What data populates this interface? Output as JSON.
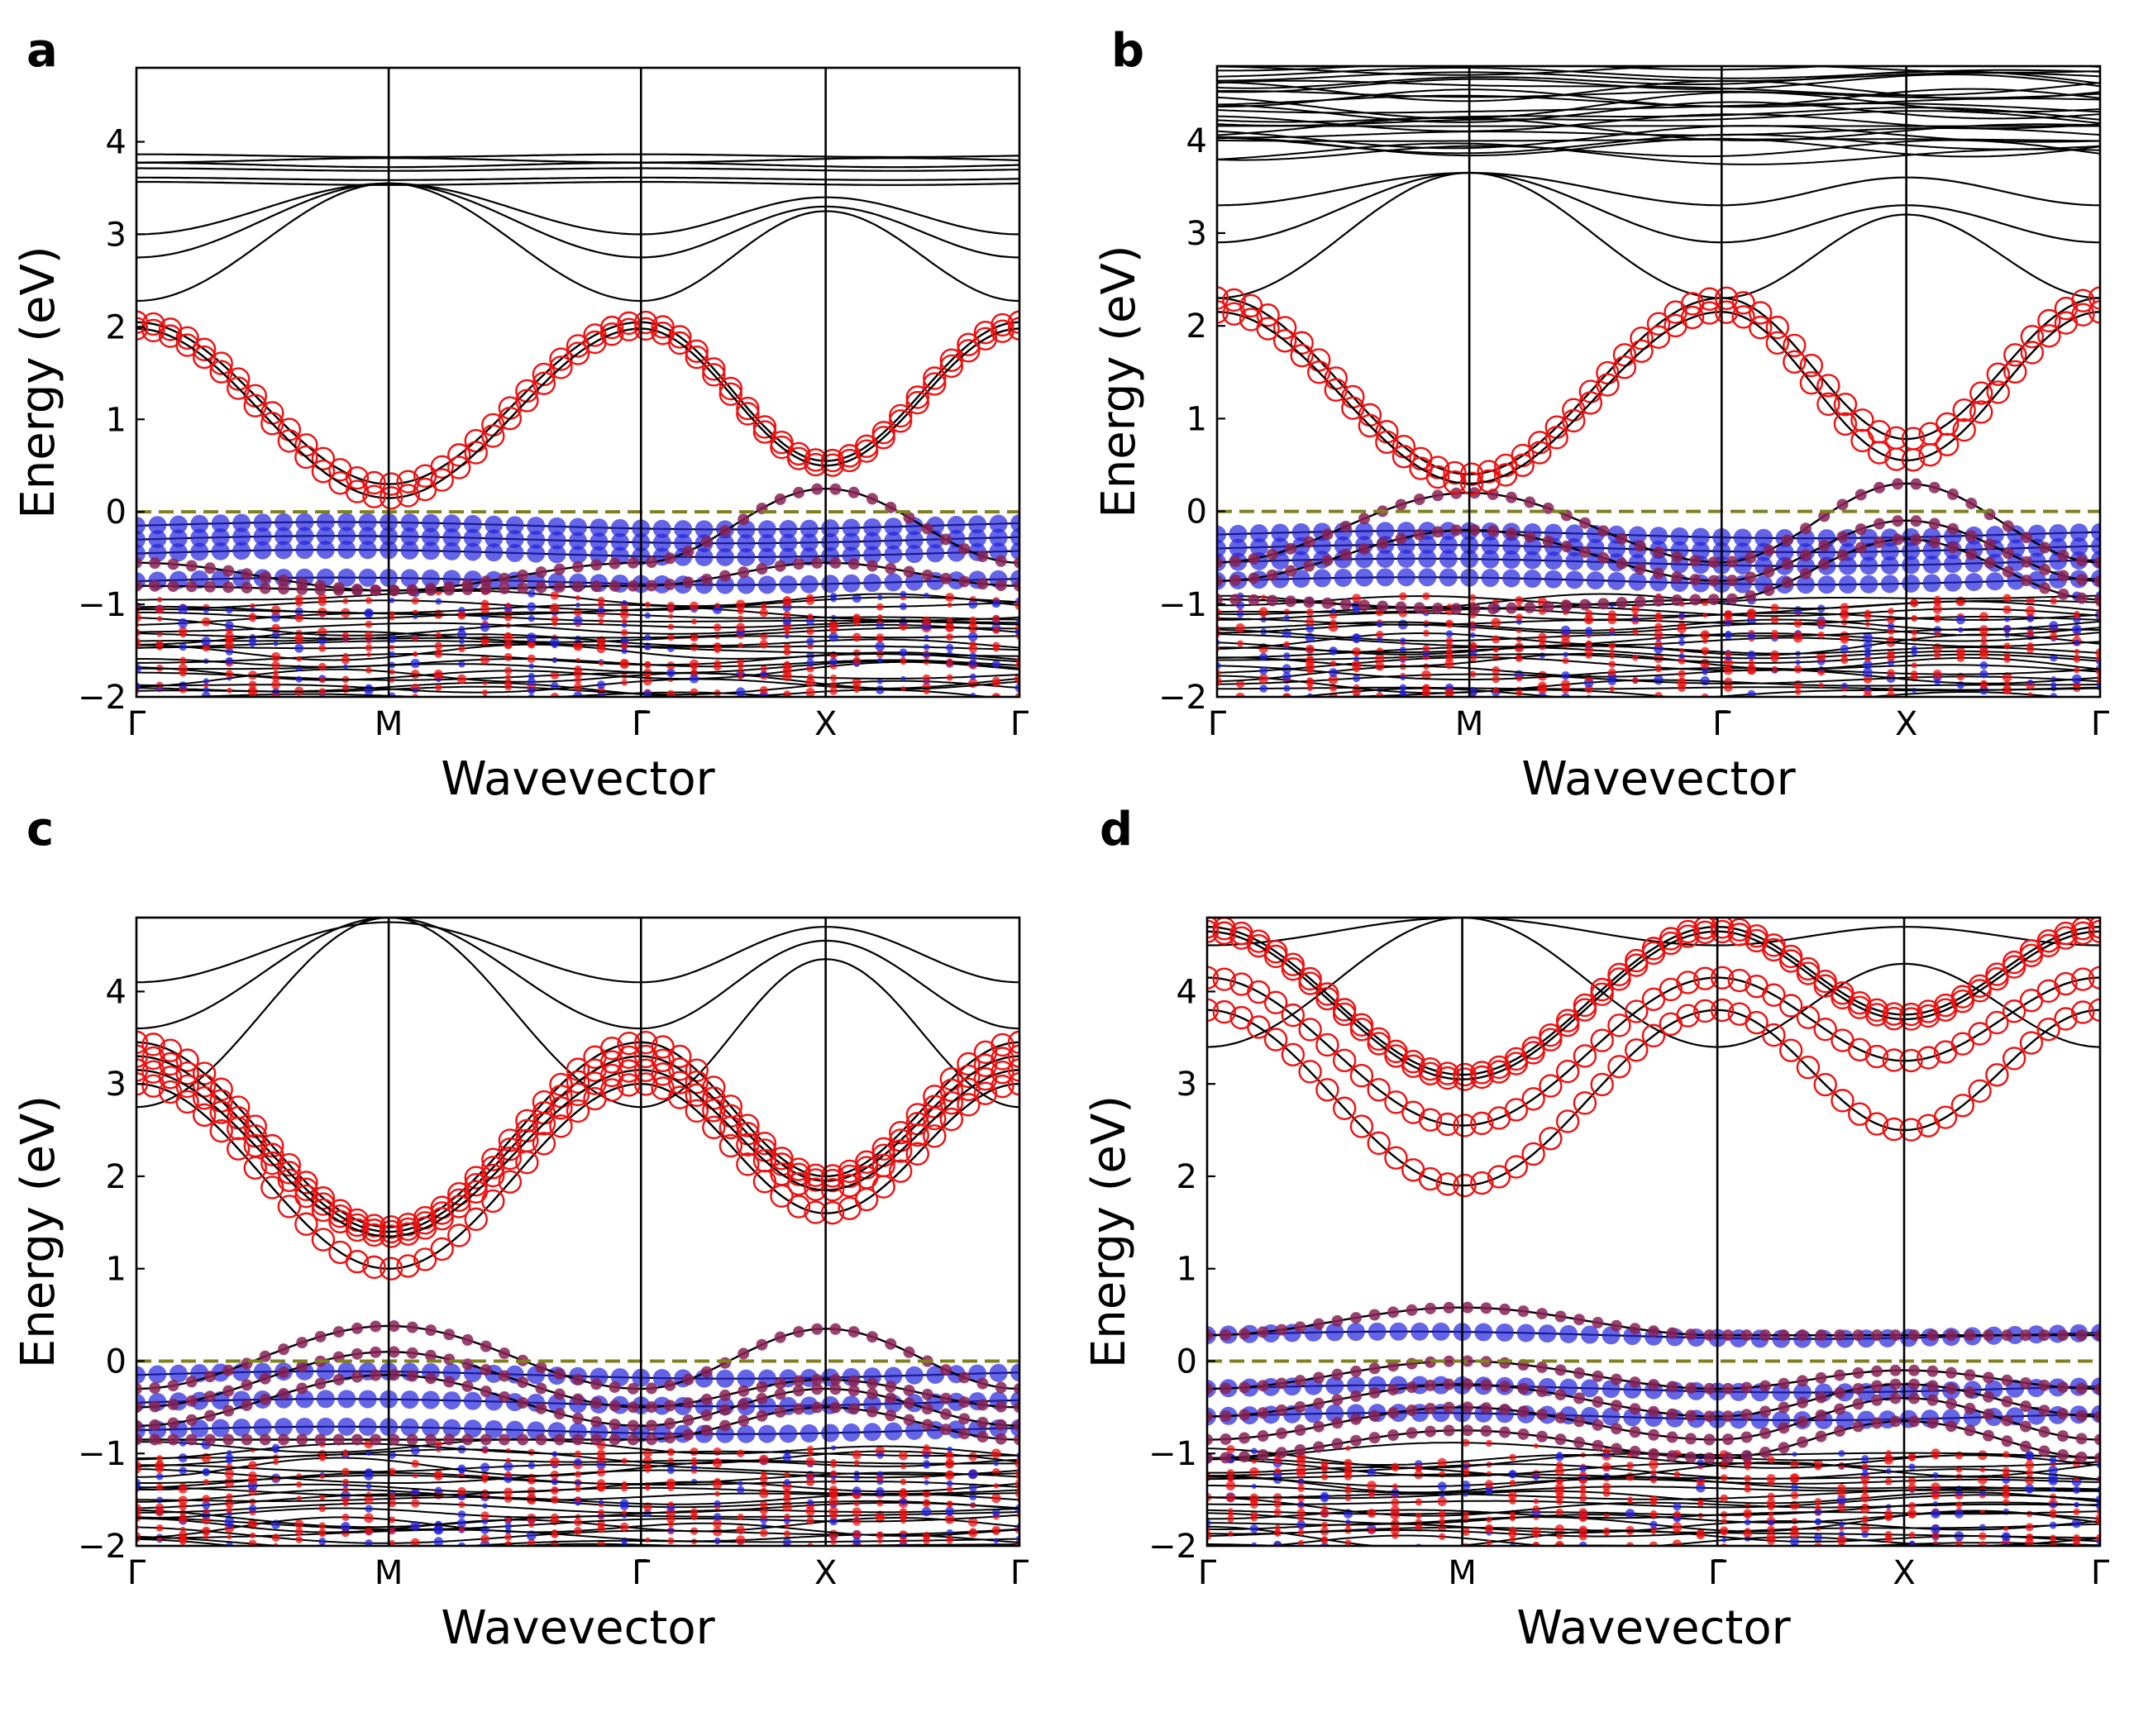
{
  "figure": {
    "ylabel": "Energy (eV)",
    "xlabel": "Wavevector"
  },
  "colors": {
    "band": "#000000",
    "red_marker": "#ee1111",
    "blue_marker": "#2222dd",
    "purple_marker": "#882255",
    "fermi": "#808020"
  },
  "chart_data": [
    {
      "type": "line",
      "panel": "a",
      "title": "",
      "xlabel": "Wavevector",
      "ylabel": "Energy (eV)",
      "ylim": [
        -2,
        4.8
      ],
      "yticks": [
        -2,
        -1,
        0,
        1,
        2,
        3,
        4
      ],
      "kpoints": [
        "Γ",
        "M",
        "Γ̄",
        "X",
        "Γ"
      ],
      "kpoint_positions": [
        0,
        1,
        2,
        2.732,
        3.5
      ],
      "fermi_level": 0,
      "bands": {
        "conduction_flat": [
          3.85,
          3.8,
          3.75,
          3.7,
          3.6,
          3.55
        ],
        "conduction_dispersive": [
          {
            "at_gamma": 2.28,
            "at_M": 3.55,
            "at_X": 3.25
          },
          {
            "at_gamma": 2.75,
            "at_M": 3.55,
            "at_X": 3.3
          },
          {
            "at_gamma": 3.0,
            "at_M": 3.55,
            "at_X": 3.4
          }
        ],
        "red_dispersive": [
          {
            "at_gamma": 2.05,
            "at_M": 0.3,
            "at_X": 0.55
          },
          {
            "at_gamma": 1.98,
            "at_M": 0.15,
            "at_X": 0.5
          }
        ],
        "blue_flat": [
          -0.15,
          -0.3,
          -0.45,
          -0.75
        ],
        "hole_bands": [
          {
            "at_gamma": -0.55,
            "at_M": -0.85,
            "at_X": 0.25
          },
          {
            "at_gamma": -0.8,
            "at_M": -0.85,
            "at_X": -0.55
          }
        ],
        "dense_valence_range": [
          -2.0,
          -0.95
        ]
      }
    },
    {
      "type": "line",
      "panel": "b",
      "title": "",
      "xlabel": "Wavevector",
      "ylabel": "Energy (eV)",
      "ylim": [
        -2,
        4.8
      ],
      "yticks": [
        -2,
        -1,
        0,
        1,
        2,
        3,
        4
      ],
      "kpoints": [
        "Γ",
        "M",
        "Γ̄",
        "X",
        "Γ"
      ],
      "kpoint_positions": [
        0,
        1,
        2,
        2.732,
        3.5
      ],
      "fermi_level": 0,
      "bands": {
        "conduction_flat_range": [
          3.85,
          4.8
        ],
        "conduction_dispersive": [
          {
            "at_gamma": 2.3,
            "at_M": 3.65,
            "at_X": 3.2
          },
          {
            "at_gamma": 2.9,
            "at_M": 3.65,
            "at_X": 3.3
          },
          {
            "at_gamma": 3.3,
            "at_M": 3.65,
            "at_X": 3.6
          }
        ],
        "red_dispersive": [
          {
            "at_gamma": 2.3,
            "at_M": 0.4,
            "at_X": 0.78
          },
          {
            "at_gamma": 2.15,
            "at_M": 0.3,
            "at_X": 0.55
          }
        ],
        "blue_flat": [
          -0.25,
          -0.4,
          -0.55,
          -0.75
        ],
        "hole_bands": [
          {
            "at_gamma": -0.55,
            "at_M": 0.2,
            "at_X": 0.3
          },
          {
            "at_gamma": -0.75,
            "at_M": -0.2,
            "at_X": -0.1
          },
          {
            "at_gamma": -0.95,
            "at_M": -1.05,
            "at_X": -0.3
          }
        ],
        "dense_valence_range": [
          -2.0,
          -0.95
        ]
      }
    },
    {
      "type": "line",
      "panel": "c",
      "title": "",
      "xlabel": "Wavevector",
      "ylabel": "Energy (eV)",
      "ylim": [
        -2,
        4.8
      ],
      "yticks": [
        -2,
        -1,
        0,
        1,
        2,
        3,
        4
      ],
      "kpoints": [
        "Γ",
        "M",
        "Γ̄",
        "X",
        "Γ"
      ],
      "kpoint_positions": [
        0,
        1,
        2,
        2.732,
        3.5
      ],
      "fermi_level": 0,
      "bands": {
        "conduction_dispersive": [
          {
            "at_gamma": 2.75,
            "at_M": 4.8,
            "at_X": 4.35
          },
          {
            "at_gamma": 3.6,
            "at_M": 4.8,
            "at_X": 4.55
          },
          {
            "at_gamma": 4.1,
            "at_M": 4.75,
            "at_X": 4.7
          }
        ],
        "red_dispersive": [
          {
            "at_gamma": 3.45,
            "at_M": 1.45,
            "at_X": 2.0
          },
          {
            "at_gamma": 3.3,
            "at_M": 1.4,
            "at_X": 1.95
          },
          {
            "at_gamma": 3.15,
            "at_M": 1.35,
            "at_X": 1.85
          },
          {
            "at_gamma": 3.0,
            "at_M": 1.0,
            "at_X": 1.6
          }
        ],
        "blue_flat": [
          -0.15,
          -0.45,
          -0.75
        ],
        "hole_bands": [
          {
            "at_gamma": -0.3,
            "at_M": 0.38,
            "at_X": 0.35
          },
          {
            "at_gamma": -0.5,
            "at_M": 0.1,
            "at_X": -0.2
          },
          {
            "at_gamma": -0.7,
            "at_M": -0.15,
            "at_X": -0.3
          },
          {
            "at_gamma": -0.85,
            "at_M": -0.85,
            "at_X": -0.5
          }
        ],
        "dense_valence_range": [
          -2.0,
          -0.95
        ]
      }
    },
    {
      "type": "line",
      "panel": "d",
      "title": "",
      "xlabel": "Wavevector",
      "ylabel": "Energy (eV)",
      "ylim": [
        -2,
        4.8
      ],
      "yticks": [
        -2,
        -1,
        0,
        1,
        2,
        3,
        4
      ],
      "kpoints": [
        "Γ",
        "M",
        "Γ̄",
        "X",
        "Γ"
      ],
      "kpoint_positions": [
        0,
        1,
        2,
        2.732,
        3.5
      ],
      "fermi_level": 0,
      "bands": {
        "conduction_dispersive": [
          {
            "at_gamma": 3.4,
            "at_M": 4.8,
            "at_X": 4.3
          },
          {
            "at_gamma": 4.5,
            "at_M": 4.8,
            "at_X": 4.7
          }
        ],
        "red_dispersive": [
          {
            "at_gamma": 4.7,
            "at_M": 3.1,
            "at_X": 3.75
          },
          {
            "at_gamma": 4.65,
            "at_M": 3.05,
            "at_X": 3.7
          },
          {
            "at_gamma": 4.15,
            "at_M": 2.55,
            "at_X": 3.25
          },
          {
            "at_gamma": 3.8,
            "at_M": 1.9,
            "at_X": 2.5
          }
        ],
        "blue_flat": [
          0.28,
          -0.3,
          -0.6
        ],
        "hole_bands": [
          {
            "at_gamma": 0.28,
            "at_M": 0.58,
            "at_X": 0.28
          },
          {
            "at_gamma": -0.3,
            "at_M": 0.0,
            "at_X": -0.1
          },
          {
            "at_gamma": -0.6,
            "at_M": -0.25,
            "at_X": -0.25
          },
          {
            "at_gamma": -0.85,
            "at_M": -0.5,
            "at_X": -0.4
          },
          {
            "at_gamma": -1.05,
            "at_M": -0.75,
            "at_X": -0.65
          }
        ],
        "dense_valence_range": [
          -2.0,
          -1.0
        ]
      }
    }
  ]
}
